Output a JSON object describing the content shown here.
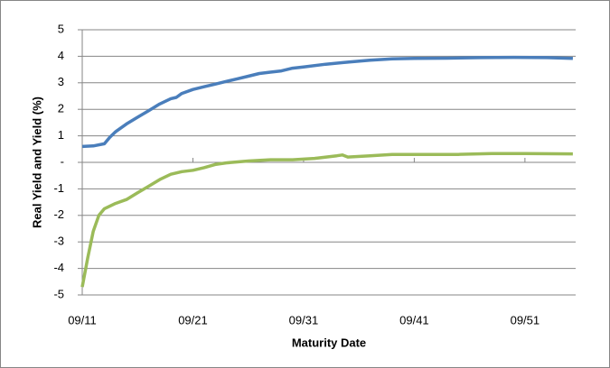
{
  "chart_data": {
    "type": "line",
    "y_label": "Real Yield and Yield (%)",
    "x_label": "Maturity Date",
    "x_format": "MM/YY",
    "xlim": [
      "09/11",
      "04/56"
    ],
    "xticks": [
      "09/11",
      "09/21",
      "09/31",
      "09/41",
      "09/51"
    ],
    "ylim": [
      -5,
      5
    ],
    "yticks": [
      5,
      4,
      3,
      2,
      1,
      {
        "value": 0,
        "label": "-"
      },
      -1,
      -2,
      -3,
      -4,
      -5
    ],
    "grid": true,
    "series": [
      {
        "color": "#4a7ebb",
        "x": [
          "09/11",
          "09/12",
          "09/13",
          "03/14",
          "09/14",
          "09/15",
          "09/16",
          "09/17",
          "09/18",
          "09/19",
          "03/20",
          "09/20",
          "09/21",
          "09/22",
          "09/23",
          "09/24",
          "09/25",
          "09/26",
          "09/27",
          "09/28",
          "09/29",
          "09/30",
          "09/31",
          "09/33",
          "09/35",
          "09/37",
          "09/39",
          "09/41",
          "09/44",
          "09/47",
          "09/50",
          "09/53",
          "01/56"
        ],
        "values": [
          0.6,
          0.62,
          0.7,
          0.95,
          1.15,
          1.45,
          1.7,
          1.95,
          2.2,
          2.4,
          2.45,
          2.6,
          2.75,
          2.85,
          2.95,
          3.05,
          3.15,
          3.25,
          3.35,
          3.4,
          3.45,
          3.55,
          3.6,
          3.7,
          3.78,
          3.85,
          3.9,
          3.92,
          3.93,
          3.95,
          3.96,
          3.95,
          3.92
        ]
      },
      {
        "color": "#9bbb59",
        "x": [
          "09/11",
          "03/12",
          "09/12",
          "03/13",
          "09/13",
          "09/14",
          "09/15",
          "09/16",
          "09/17",
          "09/18",
          "09/19",
          "09/20",
          "09/21",
          "09/22",
          "09/23",
          "09/24",
          "09/26",
          "09/28",
          "09/30",
          "09/32",
          "09/34",
          "03/35",
          "09/35",
          "09/37",
          "09/39",
          "09/42",
          "09/45",
          "09/48",
          "09/51",
          "01/56"
        ],
        "values": [
          -4.7,
          -3.6,
          -2.6,
          -2.0,
          -1.75,
          -1.55,
          -1.4,
          -1.15,
          -0.9,
          -0.65,
          -0.45,
          -0.35,
          -0.3,
          -0.2,
          -0.08,
          -0.02,
          0.05,
          0.1,
          0.1,
          0.15,
          0.25,
          0.28,
          0.2,
          0.25,
          0.3,
          0.3,
          0.3,
          0.33,
          0.33,
          0.32
        ]
      }
    ]
  }
}
